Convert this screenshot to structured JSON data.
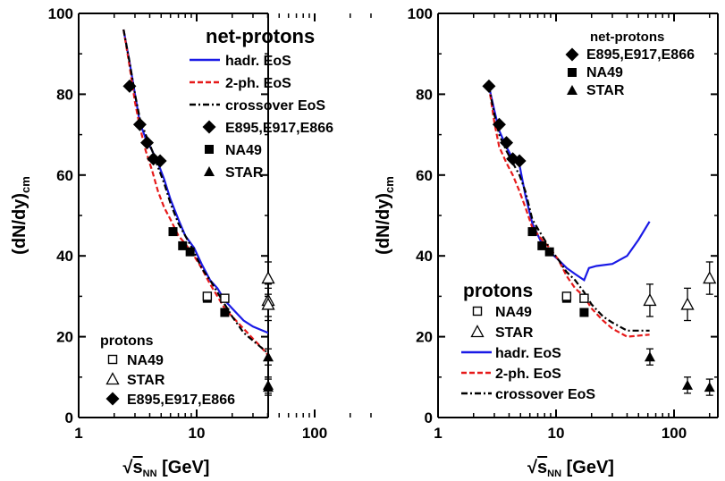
{
  "chart_data": [
    {
      "type": "line",
      "panel": "left",
      "xlabel": "√s_NN [GeV]",
      "xlabel_main": "√",
      "xlabel_s": "s",
      "xlabel_sub": "NN",
      "xlabel_unit": " [GeV]",
      "ylabel": "(dN/dy)cm",
      "ylabel_main": "(dN/dy)",
      "ylabel_sub": "cm",
      "xscale": "log",
      "xlim": [
        1,
        300
      ],
      "ylim": [
        0,
        100
      ],
      "x_tick_labels": [
        "1",
        "10",
        "100"
      ],
      "y_tick_labels": [
        "0",
        "20",
        "40",
        "60",
        "80",
        "100"
      ],
      "grid": false,
      "legend_title": "net-protons",
      "legend_location": "top-right",
      "legend_bottom_title": "protons",
      "legend_bottom_location": "bottom-left",
      "series": [
        {
          "name": "hadr. EoS",
          "style": "solid",
          "color": "#1a1ae6",
          "x": [
            2.4,
            2.7,
            3.0,
            3.3,
            3.7,
            4.2,
            4.7,
            5.3,
            6.0,
            7.0,
            8.0,
            9.5,
            11,
            13,
            15,
            17.3,
            20,
            25,
            30,
            40,
            50,
            62
          ],
          "y": [
            96,
            88,
            80,
            73,
            69,
            66,
            63,
            59,
            54,
            49,
            45,
            42,
            38,
            34,
            32,
            29,
            27,
            24,
            22.5,
            21,
            20,
            19
          ]
        },
        {
          "name": "2-ph. EoS",
          "style": "dashed",
          "color": "#e61a1a",
          "x": [
            2.4,
            2.7,
            3.0,
            3.3,
            3.7,
            4.2,
            4.7,
            5.3,
            6.0,
            7.0,
            8.0,
            9.5,
            11,
            13,
            15,
            17.3,
            20,
            25,
            30,
            35,
            40,
            45,
            50,
            62
          ],
          "y": [
            96,
            87,
            78,
            72,
            66,
            61,
            56,
            52,
            49,
            45,
            43,
            40,
            37,
            33,
            30,
            27,
            25,
            22,
            19.5,
            17.5,
            15.5,
            14.5,
            14.3,
            14
          ]
        },
        {
          "name": "crossover EoS",
          "style": "dashdot",
          "color": "#000000",
          "x": [
            2.4,
            2.7,
            3.0,
            3.3,
            3.7,
            4.2,
            4.7,
            5.3,
            6.0,
            7.0,
            8.0,
            9.5,
            11,
            13,
            15,
            17.3,
            20,
            25,
            30,
            40,
            50,
            62
          ],
          "y": [
            96,
            88,
            80,
            74,
            70,
            66,
            62,
            58,
            53,
            48,
            45,
            41,
            37,
            34,
            31,
            28,
            25,
            21,
            19,
            16,
            14,
            12.5
          ]
        }
      ],
      "markers": [
        {
          "name": "E895,E917,E866",
          "marker": "diamond",
          "x": [
            2.7,
            3.3,
            3.8,
            4.3,
            4.9
          ],
          "y": [
            82,
            72.5,
            68,
            64,
            63.5
          ]
        },
        {
          "name": "NA49",
          "marker": "filled-square",
          "x": [
            6.3,
            7.6,
            8.8,
            12.3,
            17.3
          ],
          "y": [
            46,
            42.5,
            41,
            29.5,
            26
          ]
        },
        {
          "name": "STAR",
          "marker": "filled-triangle",
          "x": [
            62.4,
            130,
            200
          ],
          "y": [
            15,
            8,
            7.5
          ]
        },
        {
          "name": "NA49",
          "marker": "open-square",
          "x": [
            12.3,
            17.3
          ],
          "y": [
            30,
            29.5
          ]
        },
        {
          "name": "STAR",
          "marker": "open-triangle",
          "x": [
            62.4,
            130,
            200
          ],
          "y": [
            29,
            28,
            34.5
          ]
        }
      ],
      "legend_top": [
        "hadr. EoS",
        "2-ph. EoS",
        "crossover EoS",
        "E895,E917,E866",
        "NA49",
        "STAR"
      ],
      "legend_bottom": [
        "NA49",
        "STAR",
        "E895,E917,E866"
      ]
    },
    {
      "type": "line",
      "panel": "right",
      "xlabel": "√s_NN [GeV]",
      "xlabel_main": "√",
      "xlabel_s": "s",
      "xlabel_sub": "NN",
      "xlabel_unit": " [GeV]",
      "ylabel": "(dN/dy)cm",
      "ylabel_main": "(dN/dy)",
      "ylabel_sub": "cm",
      "xscale": "log",
      "xlim": [
        1,
        300
      ],
      "ylim": [
        0,
        100
      ],
      "x_tick_labels": [
        "1",
        "10",
        "100"
      ],
      "y_tick_labels": [
        "0",
        "20",
        "40",
        "60",
        "80",
        "100"
      ],
      "grid": false,
      "legend_title": "net-protons",
      "legend_location": "top-right",
      "legend_bottom_title": "protons",
      "legend_bottom_location": "bottom-left",
      "series": [
        {
          "name": "hadr. EoS",
          "style": "solid",
          "color": "#1a1ae6",
          "x": [
            2.7,
            3.0,
            3.3,
            3.8,
            4.3,
            4.9,
            5.5,
            6.3,
            7.6,
            8.8,
            10.5,
            12.3,
            14.5,
            17.3,
            19,
            22,
            30,
            40,
            50,
            62
          ],
          "y": [
            82,
            76,
            71,
            67,
            64,
            62.5,
            55,
            48,
            43,
            41,
            39,
            37,
            35.5,
            34,
            37,
            37.5,
            38,
            40,
            44,
            48.5
          ]
        },
        {
          "name": "2-ph. EoS",
          "style": "dashed",
          "color": "#e61a1a",
          "x": [
            2.7,
            3.0,
            3.3,
            3.8,
            4.3,
            4.9,
            5.5,
            6.3,
            7.6,
            8.8,
            10.5,
            12.3,
            14.5,
            17.3,
            20,
            25,
            30,
            40,
            62
          ],
          "y": [
            82,
            73,
            67,
            63,
            60,
            56,
            52,
            47,
            44,
            42,
            39,
            35,
            32,
            30,
            27,
            24,
            22,
            20,
            20.5
          ]
        },
        {
          "name": "crossover EoS",
          "style": "dashdot",
          "color": "#000000",
          "x": [
            2.7,
            3.0,
            3.3,
            3.8,
            4.3,
            4.9,
            5.5,
            6.3,
            7.6,
            8.8,
            10.5,
            12.3,
            14.5,
            17.3,
            20,
            25,
            30,
            40,
            62
          ],
          "y": [
            82,
            75,
            70,
            66,
            63,
            60,
            56,
            49,
            45,
            42,
            39,
            36,
            34,
            31,
            28,
            25,
            23.5,
            21.5,
            21.5
          ]
        }
      ],
      "markers": [
        {
          "name": "E895,E917,E866",
          "marker": "diamond",
          "x": [
            2.7,
            3.3,
            3.8,
            4.3,
            4.9
          ],
          "y": [
            82,
            72.5,
            68,
            64,
            63.5
          ]
        },
        {
          "name": "NA49",
          "marker": "filled-square",
          "x": [
            6.3,
            7.6,
            8.8,
            12.3,
            17.3
          ],
          "y": [
            46,
            42.5,
            41,
            29.5,
            26
          ]
        },
        {
          "name": "STAR",
          "marker": "filled-triangle",
          "x": [
            62.4,
            130,
            200
          ],
          "y": [
            15,
            8,
            7.5
          ]
        },
        {
          "name": "NA49",
          "marker": "open-square",
          "x": [
            12.3,
            17.3
          ],
          "y": [
            30,
            29.5
          ]
        },
        {
          "name": "STAR",
          "marker": "open-triangle",
          "x": [
            62.4,
            130,
            200
          ],
          "y": [
            29,
            28,
            34.5
          ]
        }
      ],
      "legend_top": [
        "E895,E917,E866",
        "NA49",
        "STAR"
      ],
      "legend_bottom": [
        "NA49",
        "STAR",
        "hadr. EoS",
        "2-ph. EoS",
        "crossover EoS"
      ]
    }
  ]
}
